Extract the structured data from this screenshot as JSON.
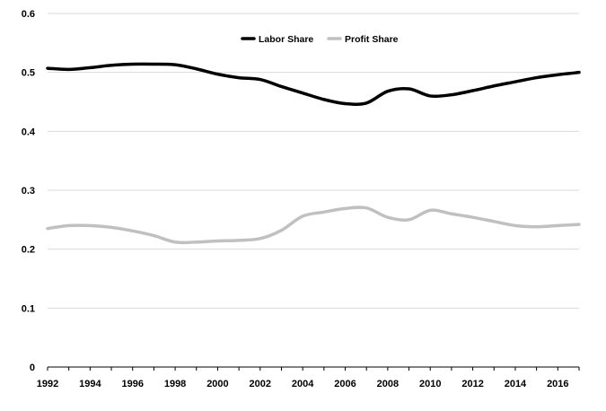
{
  "chart_data": {
    "type": "line",
    "title": "",
    "xlabel": "",
    "ylabel": "",
    "xlim": [
      1992,
      2017
    ],
    "ylim": [
      0,
      0.6
    ],
    "x_ticks": [
      "1992",
      "1994",
      "1996",
      "1998",
      "2000",
      "2002",
      "2004",
      "2006",
      "2008",
      "2010",
      "2012",
      "2014",
      "2016"
    ],
    "y_ticks": [
      "0",
      "0.1",
      "0.2",
      "0.3",
      "0.4",
      "0.5",
      "0.6"
    ],
    "grid": "horizontal",
    "legend_position": "top-center",
    "x": [
      1992,
      1993,
      1994,
      1995,
      1996,
      1997,
      1998,
      1999,
      2000,
      2001,
      2002,
      2003,
      2004,
      2005,
      2006,
      2007,
      2008,
      2009,
      2010,
      2011,
      2012,
      2013,
      2014,
      2015,
      2016,
      2017
    ],
    "series": [
      {
        "name": "Labor Share",
        "color": "#000000",
        "values": [
          0.507,
          0.505,
          0.508,
          0.512,
          0.514,
          0.514,
          0.513,
          0.506,
          0.497,
          0.491,
          0.488,
          0.476,
          0.465,
          0.454,
          0.447,
          0.448,
          0.468,
          0.472,
          0.46,
          0.462,
          0.469,
          0.477,
          0.484,
          0.491,
          0.496,
          0.5
        ]
      },
      {
        "name": "Profit Share",
        "color": "#c0c0c0",
        "values": [
          0.235,
          0.24,
          0.24,
          0.237,
          0.231,
          0.223,
          0.212,
          0.212,
          0.214,
          0.215,
          0.218,
          0.232,
          0.256,
          0.263,
          0.269,
          0.27,
          0.254,
          0.25,
          0.266,
          0.26,
          0.254,
          0.247,
          0.24,
          0.238,
          0.24,
          0.242
        ]
      }
    ]
  }
}
